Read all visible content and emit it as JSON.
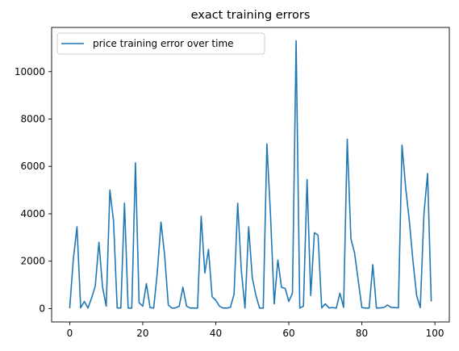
{
  "chart_data": {
    "type": "line",
    "title": "exact training errors",
    "xlabel": "",
    "ylabel": "",
    "xlim": [
      -4.95,
      103.95
    ],
    "ylim": [
      -565,
      11865
    ],
    "xticks": [
      0,
      20,
      40,
      60,
      80,
      100
    ],
    "xtick_labels": [
      "0",
      "20",
      "40",
      "60",
      "80",
      "100"
    ],
    "yticks": [
      0,
      2000,
      4000,
      6000,
      8000,
      10000
    ],
    "ytick_labels": [
      "0",
      "2000",
      "4000",
      "6000",
      "8000",
      "10000"
    ],
    "grid": false,
    "legend": {
      "position": "top-left"
    },
    "series": [
      {
        "name": "price training error over time",
        "color": "#1f77b4",
        "x": [
          0,
          1,
          2,
          3,
          4,
          5,
          6,
          7,
          8,
          9,
          10,
          11,
          12,
          13,
          14,
          15,
          16,
          17,
          18,
          19,
          20,
          21,
          22,
          23,
          24,
          25,
          26,
          27,
          28,
          29,
          30,
          31,
          32,
          33,
          34,
          35,
          36,
          37,
          38,
          39,
          40,
          41,
          42,
          43,
          44,
          45,
          46,
          47,
          48,
          49,
          50,
          51,
          52,
          53,
          54,
          55,
          56,
          57,
          58,
          59,
          60,
          61,
          62,
          63,
          64,
          65,
          66,
          67,
          68,
          69,
          70,
          71,
          72,
          73,
          74,
          75,
          76,
          77,
          78,
          79,
          80,
          81,
          82,
          83,
          84,
          85,
          86,
          87,
          88,
          89,
          90,
          91,
          92,
          93,
          94,
          95,
          96,
          97,
          98,
          99
        ],
        "values": [
          10,
          2100,
          3450,
          30,
          300,
          20,
          450,
          950,
          2800,
          900,
          100,
          5000,
          3700,
          30,
          20,
          4450,
          20,
          20,
          6150,
          250,
          100,
          1050,
          40,
          20,
          1550,
          3650,
          2250,
          150,
          20,
          30,
          100,
          900,
          100,
          20,
          20,
          20,
          3900,
          1500,
          2500,
          500,
          350,
          100,
          20,
          20,
          50,
          600,
          4450,
          1600,
          20,
          3450,
          1300,
          550,
          20,
          20,
          6950,
          3900,
          200,
          2050,
          900,
          850,
          300,
          650,
          11300,
          20,
          100,
          5450,
          550,
          3200,
          3100,
          30,
          200,
          30,
          40,
          20,
          650,
          50,
          7150,
          2950,
          2350,
          1200,
          40,
          20,
          20,
          1850,
          20,
          30,
          40,
          150,
          50,
          40,
          30,
          6900,
          5100,
          3700,
          2000,
          550,
          40,
          4000,
          5700,
          300
        ]
      }
    ]
  }
}
